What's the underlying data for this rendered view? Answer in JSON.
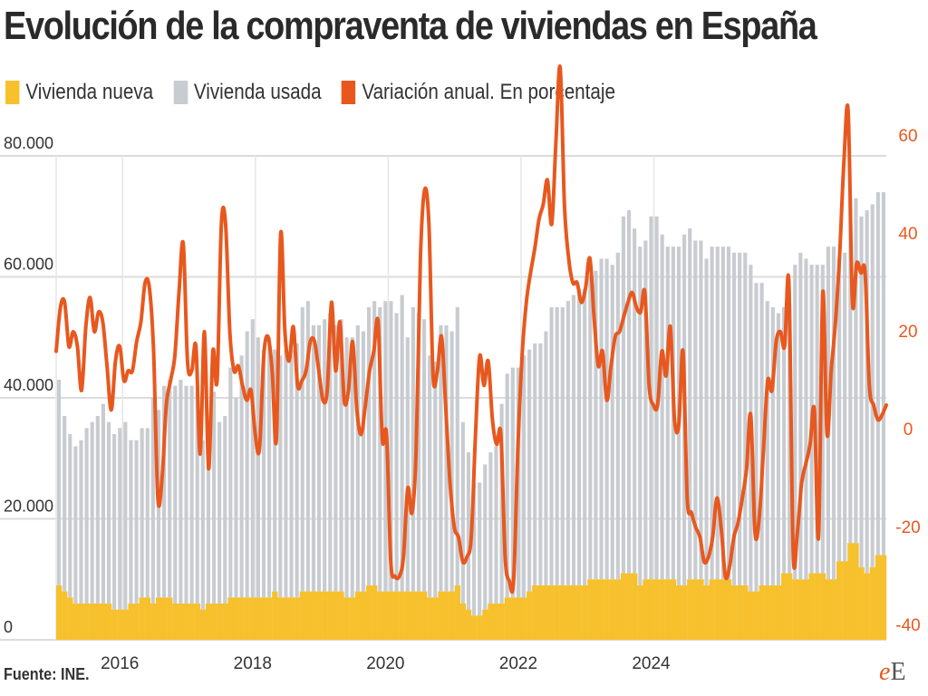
{
  "title": "Evolución de la compraventa de viviendas en España",
  "source": "Fuente: INE.",
  "logo": {
    "e": "e",
    "e2": "E"
  },
  "colors": {
    "new": "#f6c12d",
    "used": "#c8ccd1",
    "variation": "#e8581e",
    "grid": "#dcdcdc",
    "text": "#333333"
  },
  "chart_data": {
    "type": "bar",
    "start": "2015-01",
    "period": "monthly",
    "stacked": true,
    "left_axis": {
      "ylim": [
        0,
        80000
      ],
      "ticks": [
        "0",
        "20.000",
        "40.000",
        "60.000",
        "80.000"
      ],
      "tick_values": [
        0,
        20000,
        40000,
        60000,
        80000
      ]
    },
    "right_axis": {
      "ylim": [
        -40,
        60
      ],
      "ticks": [
        "-40",
        "-20",
        "0",
        "20",
        "40",
        "60"
      ],
      "tick_values": [
        -40,
        -20,
        0,
        20,
        40,
        60
      ]
    },
    "x_ticks": [
      "2016",
      "2018",
      "2020",
      "2022",
      "2024"
    ],
    "x_tick_years": [
      2016,
      2018,
      2020,
      2022,
      2024
    ],
    "grid": true,
    "legend_position": "top-left",
    "series": [
      {
        "name": "Vivienda nueva",
        "kind": "bar",
        "axis": "left",
        "values": [
          9000,
          8000,
          7000,
          6000,
          6000,
          6000,
          6000,
          6000,
          6000,
          6000,
          5000,
          5000,
          5000,
          6000,
          6000,
          7000,
          7000,
          6000,
          7000,
          7000,
          7000,
          6000,
          6000,
          6000,
          6000,
          6000,
          5000,
          6000,
          6000,
          6000,
          6000,
          7000,
          7000,
          7000,
          7000,
          7000,
          7000,
          7000,
          7000,
          8000,
          7000,
          7000,
          7000,
          7000,
          8000,
          8000,
          8000,
          8000,
          8000,
          8000,
          8000,
          8000,
          7000,
          7000,
          8000,
          8000,
          9000,
          9000,
          8000,
          8000,
          8000,
          8000,
          8000,
          8000,
          8000,
          8000,
          8000,
          7000,
          7000,
          8000,
          8000,
          8000,
          9000,
          6000,
          5000,
          4000,
          4000,
          5000,
          6000,
          6000,
          6000,
          7000,
          7000,
          7000,
          7000,
          8000,
          9000,
          9000,
          9000,
          9000,
          9000,
          9000,
          9000,
          9000,
          9000,
          9000,
          10000,
          10000,
          10000,
          10000,
          10000,
          10000,
          11000,
          11000,
          11000,
          9000,
          10000,
          10000,
          10000,
          10000,
          10000,
          10000,
          9000,
          9000,
          10000,
          10000,
          10000,
          9000,
          10000,
          10000,
          10000,
          10000,
          9000,
          9000,
          9000,
          8000,
          8000,
          9000,
          9000,
          9000,
          9000,
          11000,
          11000,
          10000,
          10000,
          10000,
          11000,
          11000,
          11000,
          10000,
          10000,
          13000,
          13000,
          16000,
          16000,
          12000,
          11000,
          12000,
          14000,
          14000
        ],
        "used": [
          34000,
          29000,
          27000,
          26000,
          27000,
          29000,
          30000,
          31000,
          33000,
          30000,
          29000,
          30000,
          31000,
          27000,
          27000,
          28000,
          28000,
          34000,
          31000,
          35000,
          36000,
          36000,
          37000,
          36000,
          36000,
          35000,
          28000,
          30000,
          35000,
          30000,
          31000,
          38000,
          33000,
          40000,
          44000,
          46000,
          43000,
          41000,
          43000,
          40000,
          40000,
          41000,
          41000,
          42000,
          47000,
          48000,
          44000,
          44000,
          45000,
          46000,
          44000,
          45000,
          43000,
          43000,
          44000,
          43000,
          46000,
          47000,
          47000,
          48000,
          48000,
          46000,
          49000,
          42000,
          47000,
          46000,
          45000,
          40000,
          39000,
          44000,
          44000,
          43000,
          46000,
          30000,
          26000,
          22000,
          22000,
          24000,
          25000,
          26000,
          33000,
          37000,
          38000,
          38000,
          40000,
          40000,
          40000,
          40000,
          42000,
          46000,
          46000,
          46000,
          47000,
          48000,
          49000,
          49000,
          50000,
          51000,
          53000,
          53000,
          52000,
          54000,
          59000,
          60000,
          57000,
          56000,
          56000,
          60000,
          60000,
          57000,
          55000,
          55000,
          56000,
          58000,
          58000,
          56000,
          56000,
          54000,
          55000,
          55000,
          55000,
          55000,
          55000,
          55000,
          55000,
          54000,
          51000,
          50000,
          47000,
          46000,
          45000,
          44000,
          44000,
          52000,
          54000,
          53000,
          51000,
          51000,
          51000,
          55000,
          55000,
          50000,
          51000,
          57000,
          57000,
          58000,
          60000,
          60000,
          60000,
          60000,
          61000,
          60000
        ]
      },
      {
        "name": "Vivienda usada",
        "kind": "bar",
        "axis": "left"
      },
      {
        "name": "Variación anual. En porcentaje",
        "kind": "line",
        "axis": "right",
        "values": [
          16,
          25,
          26,
          17,
          20,
          17,
          8,
          21,
          27,
          20,
          24,
          22,
          13,
          4,
          14,
          17,
          10,
          12,
          12,
          18,
          22,
          30,
          29,
          16,
          -14,
          -10,
          5,
          10,
          15,
          28,
          38,
          14,
          12,
          17,
          -5,
          20,
          -8,
          16,
          10,
          42,
          42,
          20,
          12,
          13,
          9,
          6,
          8,
          -1,
          -4,
          15,
          19,
          12,
          -2,
          40,
          20,
          14,
          21,
          9,
          10,
          12,
          18,
          18,
          12,
          6,
          8,
          26,
          12,
          22,
          6,
          8,
          18,
          4,
          -1,
          5,
          12,
          16,
          22,
          -2,
          -1,
          -27,
          -30,
          -30,
          -26,
          -12,
          -17,
          -4,
          35,
          49,
          42,
          11,
          12,
          19,
          4,
          -11,
          -20,
          -22,
          -27,
          -26,
          -22,
          -1,
          15,
          9,
          14,
          2,
          -3,
          -1,
          -26,
          -31,
          -31,
          -4,
          15,
          26,
          32,
          37,
          43,
          46,
          51,
          42,
          59,
          74,
          46,
          35,
          30,
          30,
          26,
          29,
          35,
          23,
          13,
          16,
          6,
          13,
          19,
          20,
          23,
          26,
          28,
          25,
          24,
          28,
          9,
          5,
          5,
          16,
          11,
          21,
          2,
          1,
          16,
          -14,
          -17,
          -20,
          -22,
          -27,
          -26,
          -22,
          -14,
          -20,
          -30,
          -28,
          -22,
          -19,
          -14,
          -8,
          3,
          -21,
          -18,
          -4,
          10,
          8,
          18,
          20,
          17,
          30,
          -25,
          -21,
          -11,
          -7,
          -3,
          4,
          -22,
          28,
          -1,
          12,
          22,
          36,
          55,
          65,
          26,
          34,
          32,
          32,
          9,
          5,
          2,
          3,
          5
        ]
      }
    ]
  },
  "legend": [
    {
      "label": "Vivienda nueva",
      "color": "#f6c12d"
    },
    {
      "label": "Vivienda usada",
      "color": "#c8ccd1"
    },
    {
      "label": "Variación anual. En porcentaje",
      "color": "#e8581e"
    }
  ]
}
